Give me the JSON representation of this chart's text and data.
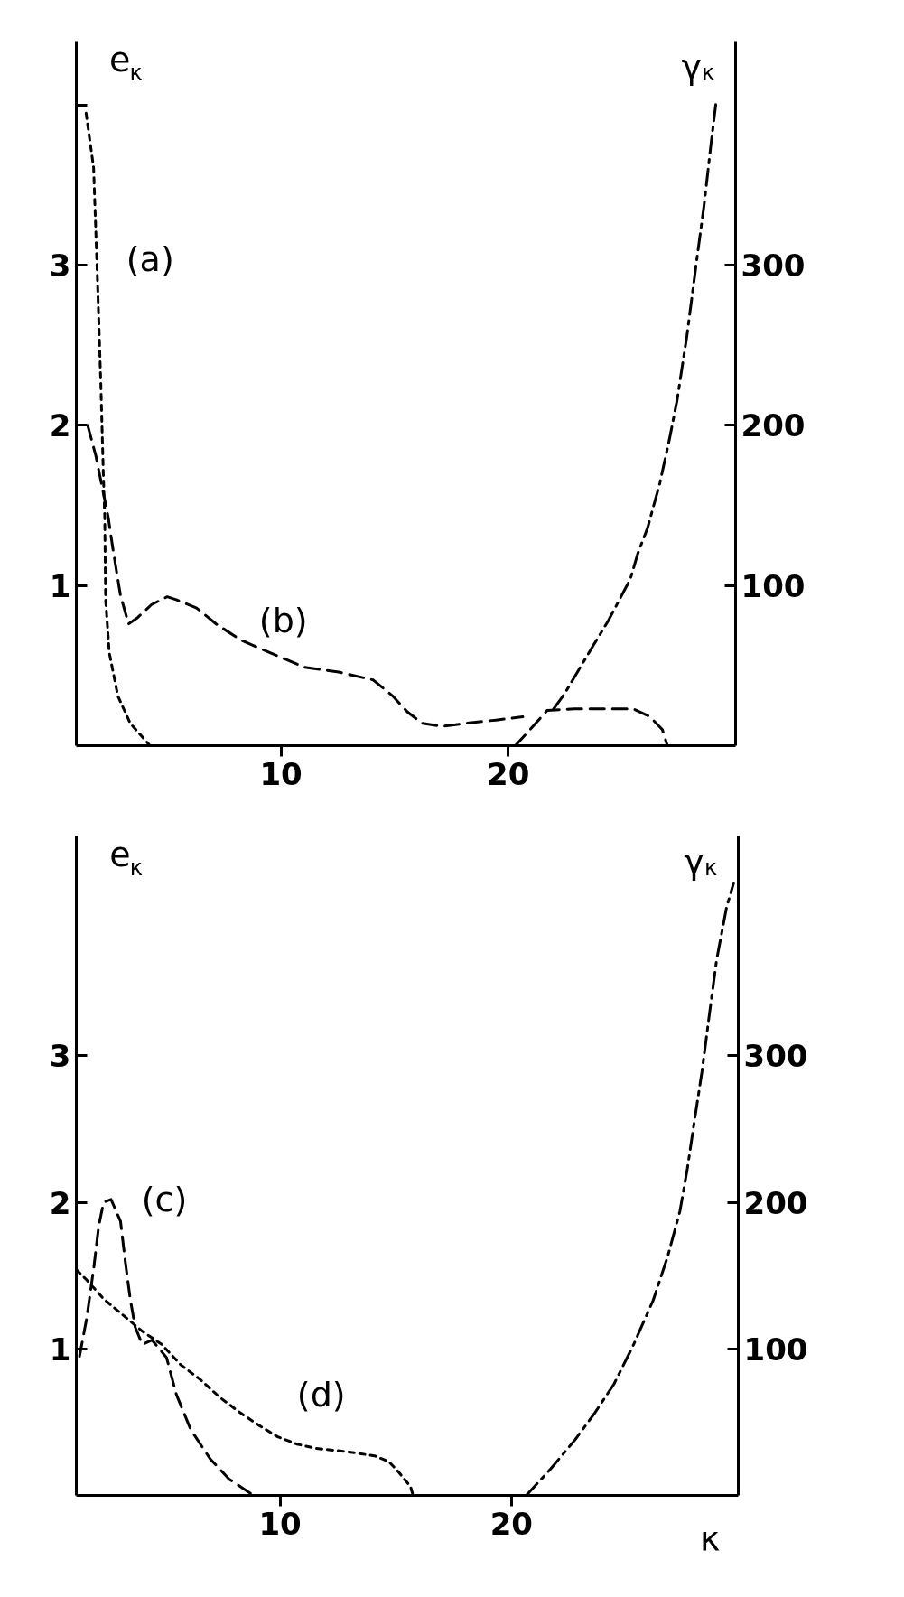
{
  "chart_data": [
    {
      "type": "line",
      "xlim": [
        1,
        30
      ],
      "xticks": [
        10,
        20
      ],
      "ylim": [
        0,
        4.4
      ],
      "yticks": [
        1,
        2,
        3,
        {
          "value": 4,
          "label": null
        }
      ],
      "y2lim": [
        0,
        440
      ],
      "y2ticks": [
        100,
        200,
        300
      ],
      "ylabel": "e$_{κ}$",
      "y2label": "γ$_{κ}$",
      "grid": false,
      "series": [
        {
          "name": "(a)",
          "color": "#000000",
          "line_style": "dotted",
          "x": [
            1.43,
            1.76,
            1.91,
            2.08,
            2.19,
            2.25,
            2.29,
            2.45,
            2.83,
            3.37,
            4.24
          ],
          "values": [
            3.95,
            3.61,
            3.0,
            2.25,
            1.69,
            1.43,
            0.91,
            0.58,
            0.31,
            0.14,
            0
          ]
        },
        {
          "name": "(b)",
          "color": "#000000",
          "line_style": "dashed",
          "x": [
            1.5,
            1.86,
            2.4,
            2.62,
            2.94,
            3.3,
            3.7,
            4.3,
            5.0,
            5.42,
            6.29,
            7.15,
            8.23,
            9.52,
            11.03,
            12.54,
            14.06,
            14.92,
            15.57,
            16.21,
            17.08,
            18.16,
            19.46,
            20.64
          ],
          "values": [
            2.0,
            1.81,
            1.43,
            1.22,
            0.94,
            0.76,
            0.8,
            0.88,
            0.93,
            0.91,
            0.86,
            0.76,
            0.66,
            0.58,
            0.49,
            0.46,
            0.41,
            0.31,
            0.21,
            0.14,
            0.12,
            0.14,
            0.16,
            0.18
          ]
        },
        {
          "color": "#000000",
          "line_style": "dashed",
          "x": [
            20.31,
            20.96,
            21.71,
            22.9,
            24.19,
            25.49,
            26.24,
            26.78,
            27.0
          ],
          "values": [
            0,
            0.1,
            0.22,
            0.23,
            0.23,
            0.23,
            0.18,
            0.1,
            0
          ]
        },
        {
          "color": "#000000",
          "line_style": "dashdot",
          "axis": "y2",
          "x": [
            22.0,
            22.46,
            23.76,
            24.4,
            25.37,
            25.7,
            26.13,
            26.67,
            27.1,
            27.43,
            27.86,
            28.29,
            28.61,
            28.93,
            29.15
          ],
          "values": [
            23,
            32,
            63,
            78,
            104,
            120,
            136,
            164,
            192,
            216,
            256,
            303,
            337,
            377,
            403
          ]
        }
      ]
    },
    {
      "type": "line",
      "xlim": [
        1.2,
        29.8
      ],
      "xticks": [
        10,
        20
      ],
      "ylim": [
        0,
        4.5
      ],
      "yticks": [
        1,
        2,
        3
      ],
      "y2lim": [
        0,
        450
      ],
      "y2ticks": [
        100,
        200,
        300
      ],
      "xlabel": "κ",
      "ylabel": "e$_{κ}$",
      "y2label": "γ$_{κ}$",
      "grid": false,
      "series": [
        {
          "name": "(c)",
          "color": "#000000",
          "line_style": "dashed",
          "x": [
            1.34,
            1.65,
            1.96,
            2.17,
            2.38,
            2.7,
            3.11,
            3.32,
            3.53,
            3.74,
            4.05,
            4.47,
            5.1,
            5.52,
            6.14,
            6.98,
            7.81,
            8.86
          ],
          "values": [
            0.95,
            1.21,
            1.56,
            1.84,
            2.0,
            2.02,
            1.87,
            1.59,
            1.34,
            1.15,
            1.03,
            1.06,
            0.94,
            0.69,
            0.45,
            0.25,
            0.11,
            0
          ]
        },
        {
          "name": "(d)",
          "color": "#000000",
          "line_style": "dotted",
          "x": [
            1.2,
            1.65,
            2.38,
            3.22,
            4.05,
            4.89,
            5.72,
            6.56,
            7.39,
            8.23,
            9.07,
            9.9,
            10.74,
            11.57,
            12.82,
            14.08,
            14.71,
            15.12,
            15.64,
            15.75
          ],
          "values": [
            1.54,
            1.47,
            1.34,
            1.23,
            1.12,
            1.03,
            0.89,
            0.79,
            0.67,
            0.57,
            0.48,
            0.4,
            0.35,
            0.32,
            0.3,
            0.27,
            0.23,
            0.16,
            0.06,
            0
          ]
        },
        {
          "color": "#000000",
          "line_style": "dashdot",
          "axis": "y2",
          "x": [
            20.64,
            21.69,
            22.75,
            23.59,
            24.43,
            25.28,
            26.12,
            26.75,
            27.28,
            27.6,
            27.91,
            28.23,
            28.55,
            28.86,
            29.29,
            29.6
          ],
          "values": [
            0,
            18,
            38,
            56,
            76,
            103,
            133,
            163,
            194,
            223,
            256,
            289,
            328,
            365,
            401,
            418
          ]
        }
      ]
    }
  ]
}
